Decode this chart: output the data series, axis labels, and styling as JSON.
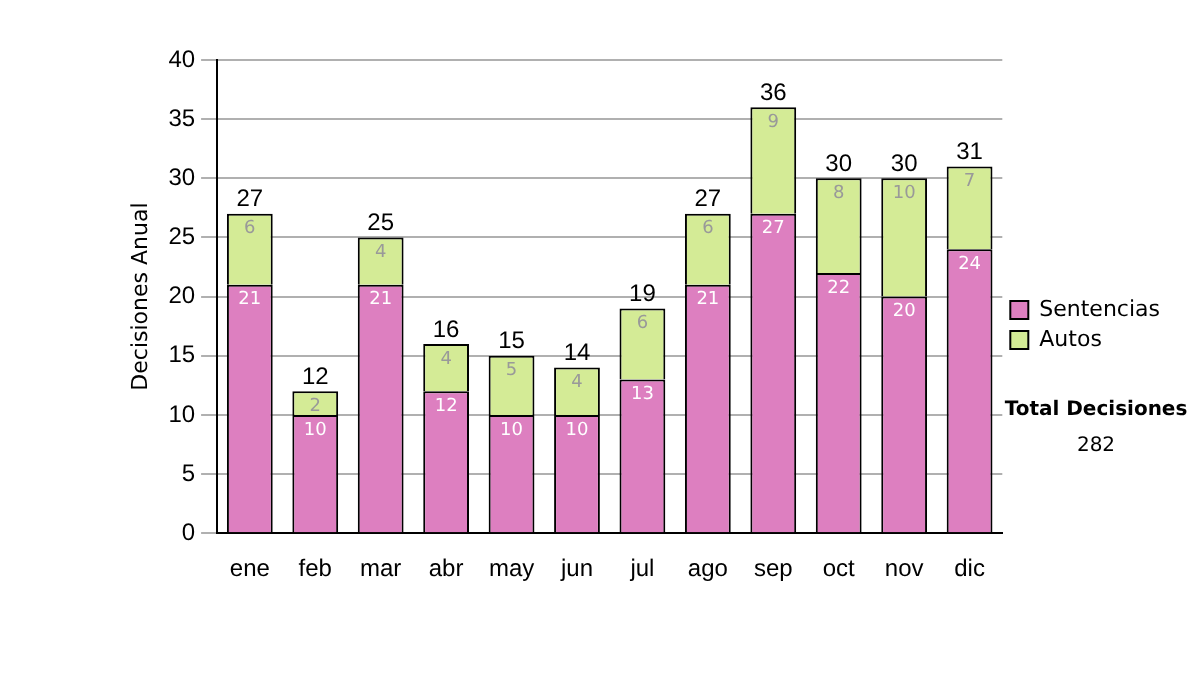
{
  "chart_data": {
    "type": "bar",
    "stacked": true,
    "ylabel": "Decisiones Anual",
    "categories": [
      "ene",
      "feb",
      "mar",
      "abr",
      "may",
      "jun",
      "jul",
      "ago",
      "sep",
      "oct",
      "nov",
      "dic"
    ],
    "series": [
      {
        "name": "Sentencias",
        "color": "#dd7fc0",
        "values": [
          21,
          10,
          21,
          12,
          10,
          10,
          13,
          21,
          27,
          22,
          20,
          24
        ]
      },
      {
        "name": "Autos",
        "color": "#d4eb96",
        "values": [
          6,
          2,
          4,
          4,
          5,
          4,
          6,
          6,
          9,
          8,
          10,
          7
        ]
      }
    ],
    "totals": [
      "27",
      "12",
      "25",
      "16",
      "15",
      "14",
      "19",
      "27",
      "36",
      "30",
      "30",
      "31"
    ],
    "data_labels": true,
    "ylim": [
      0,
      40
    ],
    "yticks": [
      0,
      5,
      10,
      15,
      20,
      25,
      30,
      35,
      40
    ],
    "grid": "y",
    "legend": "right",
    "annotations": [
      "Total Decisiones",
      "282"
    ]
  }
}
